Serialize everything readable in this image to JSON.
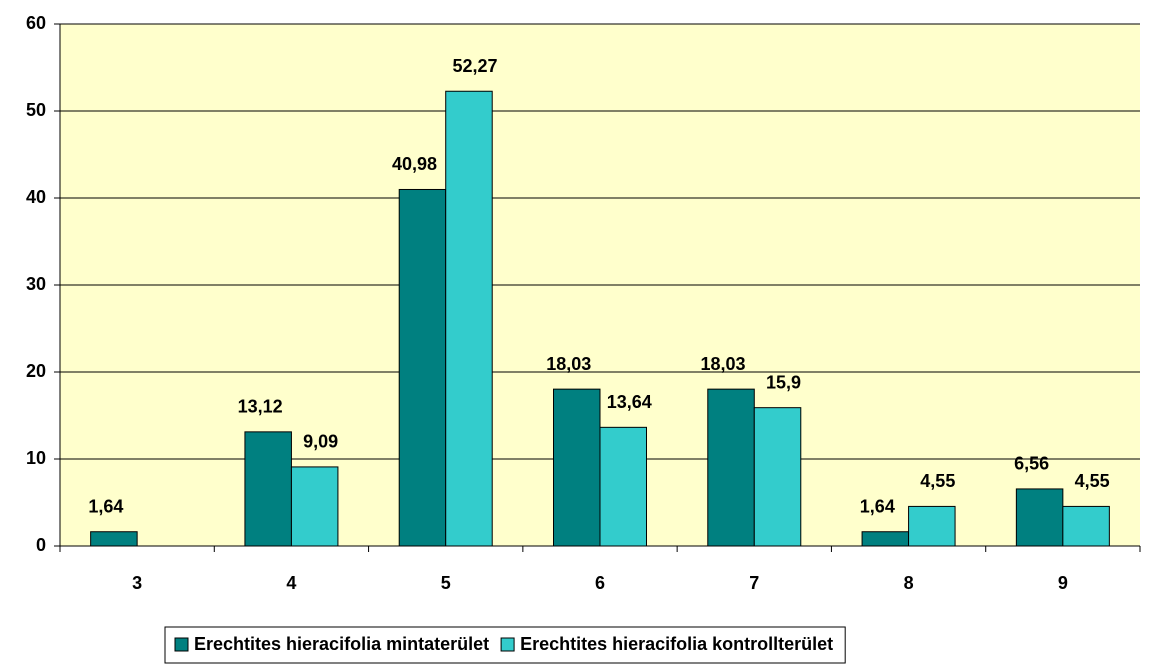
{
  "chart_data": {
    "type": "bar",
    "categories": [
      "3",
      "4",
      "5",
      "6",
      "7",
      "8",
      "9"
    ],
    "series": [
      {
        "name": "Erechtites hieracifolia mintaterület",
        "color": "#008080",
        "values": [
          1.64,
          13.12,
          40.98,
          18.03,
          18.03,
          1.64,
          6.56
        ],
        "value_labels": [
          "1,64",
          "13,12",
          "40,98",
          "18,03",
          "18,03",
          "1,64",
          "6,56"
        ]
      },
      {
        "name": "Erechtites hieracifolia kontrollterület",
        "color": "#33CCCC",
        "values": [
          null,
          9.09,
          52.27,
          13.64,
          15.9,
          4.55,
          4.55
        ],
        "value_labels": [
          null,
          "9,09",
          "52,27",
          "13,64",
          "15,9",
          "4,55",
          "4,55"
        ]
      }
    ],
    "ylim": [
      0,
      60
    ],
    "yticks": [
      0,
      10,
      20,
      30,
      40,
      50,
      60
    ],
    "grid": true,
    "plot_background": "#FFFFCC",
    "legend": "bottom"
  }
}
